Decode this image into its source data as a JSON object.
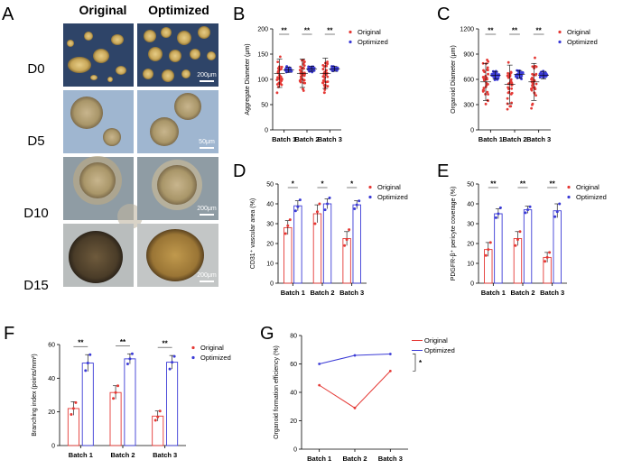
{
  "colors": {
    "original": "#e53935",
    "optimized": "#3b3bd6"
  },
  "panel_a": {
    "letter": "A",
    "headers": [
      "Original",
      "Optimized"
    ],
    "rows": [
      {
        "label": "D0",
        "scale": "200μm"
      },
      {
        "label": "D5",
        "scale": "50μm"
      },
      {
        "label": "D10",
        "scale": "200μm"
      },
      {
        "label": "D15",
        "scale": "200μm"
      }
    ]
  },
  "chart_data": [
    {
      "id": "B",
      "letter": "B",
      "type": "scatter",
      "ylabel": "Aggregate Diameter (μm)",
      "ylim": [
        0,
        200
      ],
      "yticks": [
        0,
        50,
        100,
        150,
        200
      ],
      "categories": [
        "Batch 1",
        "Batch 2",
        "Batch 3"
      ],
      "series": [
        {
          "name": "Original",
          "means": [
            112,
            112,
            112
          ],
          "sd": [
            28,
            28,
            30
          ]
        },
        {
          "name": "Optimized",
          "means": [
            119,
            121,
            121
          ],
          "sd": [
            5,
            5,
            5
          ]
        }
      ],
      "significance": [
        "**",
        "**",
        "**"
      ]
    },
    {
      "id": "C",
      "letter": "C",
      "type": "scatter",
      "ylabel": "Organoid Diameter (μm)",
      "ylim": [
        0,
        1200
      ],
      "yticks": [
        0,
        300,
        600,
        900,
        1200
      ],
      "categories": [
        "Batch 1",
        "Batch 2",
        "Batch 3"
      ],
      "series": [
        {
          "name": "Original",
          "means": [
            570,
            540,
            570
          ],
          "sd": [
            220,
            230,
            220
          ]
        },
        {
          "name": "Optimized",
          "means": [
            650,
            660,
            650
          ],
          "sd": [
            45,
            45,
            45
          ]
        }
      ],
      "significance": [
        "**",
        "**",
        "**"
      ]
    },
    {
      "id": "D",
      "letter": "D",
      "type": "bar",
      "ylabel": "CD31⁺ vascular area (%)",
      "ylim": [
        0,
        50
      ],
      "yticks": [
        0,
        10,
        20,
        30,
        40,
        50
      ],
      "categories": [
        "Batch 1",
        "Batch 2",
        "Batch 3"
      ],
      "series": [
        {
          "name": "Original",
          "values": [
            28,
            35,
            22.5
          ],
          "sd": [
            3.5,
            4.5,
            3.5
          ],
          "points": [
            [
              25,
              29,
              32
            ],
            [
              30,
              36,
              40
            ],
            [
              19,
              22,
              27
            ]
          ]
        },
        {
          "name": "Optimized",
          "values": [
            39,
            40,
            39.5
          ],
          "sd": [
            2.5,
            2.5,
            2
          ],
          "points": [
            [
              36.5,
              38.5,
              42
            ],
            [
              37,
              40,
              43
            ],
            [
              37.5,
              39.5,
              41.5
            ]
          ]
        }
      ],
      "significance": [
        "*",
        "*",
        "*"
      ]
    },
    {
      "id": "E",
      "letter": "E",
      "type": "bar",
      "ylabel": "PDGFR-β⁺ pericyte coverage (%)",
      "ylim": [
        0,
        50
      ],
      "yticks": [
        0,
        10,
        20,
        30,
        40,
        50
      ],
      "categories": [
        "Batch 1",
        "Batch 2",
        "Batch 3"
      ],
      "series": [
        {
          "name": "Original",
          "values": [
            17,
            22.5,
            13
          ],
          "sd": [
            3.5,
            3.5,
            2.5
          ],
          "points": [
            [
              14,
              17,
              20.5
            ],
            [
              19,
              22,
              26
            ],
            [
              11,
              13,
              15.5
            ]
          ]
        },
        {
          "name": "Optimized",
          "values": [
            35,
            37,
            36.5
          ],
          "sd": [
            2.5,
            1.8,
            3.5
          ],
          "points": [
            [
              33,
              35,
              38
            ],
            [
              35.5,
              37,
              38.5
            ],
            [
              33.5,
              36,
              40
            ]
          ]
        }
      ],
      "significance": [
        "**",
        "**",
        "**"
      ]
    },
    {
      "id": "F",
      "letter": "F",
      "type": "bar",
      "ylabel": "Branching index (points/mm²)",
      "ylim": [
        0,
        60
      ],
      "yticks": [
        0,
        20,
        40,
        60
      ],
      "categories": [
        "Batch 1",
        "Batch 2",
        "Batch 3"
      ],
      "series": [
        {
          "name": "Original",
          "values": [
            22,
            31.5,
            17.5
          ],
          "sd": [
            4,
            4,
            3
          ],
          "points": [
            [
              18.5,
              22,
              25.5
            ],
            [
              28,
              31.5,
              35.5
            ],
            [
              15,
              17,
              20.5
            ]
          ]
        },
        {
          "name": "Optimized",
          "values": [
            49,
            51.5,
            49.5
          ],
          "sd": [
            5,
            3,
            4
          ],
          "points": [
            [
              44.5,
              49,
              54
            ],
            [
              48.5,
              51.5,
              54.5
            ],
            [
              45.5,
              49.5,
              53
            ]
          ]
        }
      ],
      "significance": [
        "**",
        "**",
        "**"
      ]
    },
    {
      "id": "G",
      "letter": "G",
      "type": "line",
      "ylabel": "Organoid formation efficiency (%)",
      "ylim": [
        0,
        80
      ],
      "yticks": [
        0,
        20,
        40,
        60,
        80
      ],
      "categories": [
        "Batch 1",
        "Batch 2",
        "Batch 3"
      ],
      "series": [
        {
          "name": "Original",
          "values": [
            45,
            29,
            55
          ]
        },
        {
          "name": "Optimized",
          "values": [
            60,
            66,
            67
          ]
        }
      ],
      "significance": [
        "*"
      ]
    }
  ]
}
